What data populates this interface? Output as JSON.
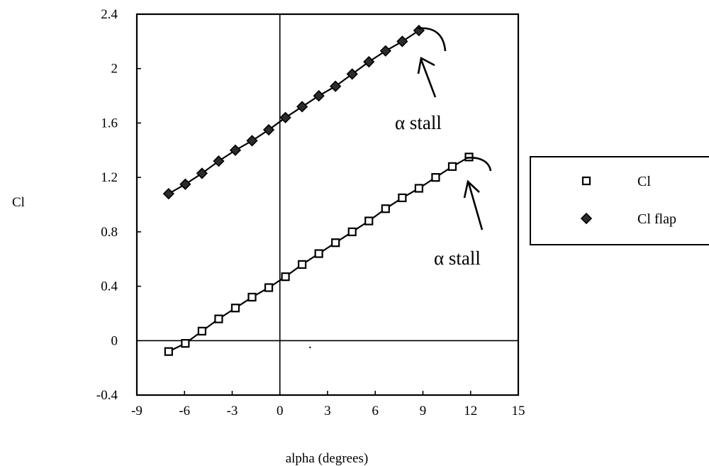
{
  "chart_data": {
    "type": "scatter",
    "title": "",
    "xlabel": "alpha (degrees)",
    "ylabel": "Cl",
    "xlim": [
      -9,
      15
    ],
    "ylim": [
      -0.4,
      2.4
    ],
    "xticks": [
      "-9",
      "-6",
      "-3",
      "0",
      "3",
      "6",
      "9",
      "12",
      "15"
    ],
    "yticks": [
      "-0.4",
      "0",
      "0.4",
      "0.8",
      "1.2",
      "1.6",
      "2",
      "2.4"
    ],
    "grid": false,
    "legend_position": "right",
    "series": [
      {
        "name": "Cl",
        "marker": "hollow-square",
        "x": [
          -7,
          -5.95,
          -4.9,
          -3.85,
          -2.8,
          -1.75,
          -0.7,
          0.35,
          1.4,
          2.45,
          3.5,
          4.55,
          5.6,
          6.65,
          7.7,
          8.75,
          9.8,
          10.85,
          11.9
        ],
        "y": [
          -0.08,
          -0.02,
          0.07,
          0.16,
          0.24,
          0.32,
          0.39,
          0.47,
          0.56,
          0.64,
          0.72,
          0.8,
          0.88,
          0.97,
          1.05,
          1.12,
          1.2,
          1.28,
          1.35
        ]
      },
      {
        "name": "Cl flap",
        "marker": "filled-diamond",
        "x": [
          -7,
          -5.95,
          -4.9,
          -3.85,
          -2.8,
          -1.75,
          -0.7,
          0.35,
          1.4,
          2.45,
          3.5,
          4.55,
          5.6,
          6.65,
          7.7,
          8.75
        ],
        "y": [
          1.08,
          1.15,
          1.23,
          1.32,
          1.4,
          1.47,
          1.55,
          1.64,
          1.72,
          1.8,
          1.87,
          1.96,
          2.05,
          2.13,
          2.2,
          2.28
        ]
      }
    ],
    "annotations": [
      {
        "text": "α stall",
        "series": "Cl flap"
      },
      {
        "text": "α stall",
        "series": "Cl"
      }
    ]
  },
  "colors": {
    "ink": "#000000",
    "background": "#ffffff"
  }
}
